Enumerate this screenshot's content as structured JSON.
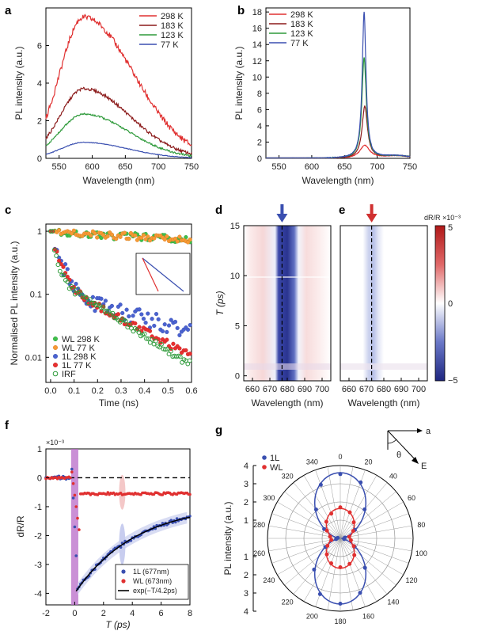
{
  "panels": {
    "a": {
      "letter": "a",
      "chart_data": {
        "type": "line",
        "xlabel": "Wavelength (nm)",
        "ylabel": "PL intensity (a.u.)",
        "xlim": [
          530,
          750
        ],
        "ylim": [
          0,
          8
        ],
        "xticks": [
          550,
          600,
          650,
          700,
          750
        ],
        "yticks": [
          0,
          2,
          4,
          6
        ],
        "legend": "top-right",
        "peak": 587,
        "series": [
          {
            "name": "298 K",
            "color": "#e03030",
            "amp": 7.5,
            "wl": 36,
            "wr": 75
          },
          {
            "name": "183 K",
            "color": "#8b1a1a",
            "amp": 3.7,
            "wl": 36,
            "wr": 70
          },
          {
            "name": "123 K",
            "color": "#2e9a3a",
            "amp": 2.35,
            "wl": 36,
            "wr": 68
          },
          {
            "name": "77 K",
            "color": "#3a4fb0",
            "amp": 0.85,
            "wl": 34,
            "wr": 66
          }
        ]
      }
    },
    "b": {
      "letter": "b",
      "chart_data": {
        "type": "line",
        "xlabel": "Wavelength (nm)",
        "ylabel": "PL intensity (a.u.)",
        "xlim": [
          530,
          750
        ],
        "ylim": [
          0,
          18.5
        ],
        "xticks": [
          550,
          600,
          650,
          700,
          750
        ],
        "yticks": [
          0,
          2,
          4,
          6,
          8,
          10,
          12,
          14,
          16,
          18
        ],
        "legend": "top-left",
        "series": [
          {
            "name": "298 K",
            "color": "#e03030",
            "peak": 681,
            "amp": 1.6,
            "w": 9
          },
          {
            "name": "183 K",
            "color": "#8b1a1a",
            "peak": 681,
            "amp": 6.4,
            "w": 5
          },
          {
            "name": "123 K",
            "color": "#2e9a3a",
            "peak": 680,
            "amp": 12.4,
            "w": 4
          },
          {
            "name": "77 K",
            "color": "#3a4fb0",
            "peak": 680,
            "amp": 18.0,
            "w": 3.5
          }
        ]
      }
    },
    "c": {
      "letter": "c",
      "chart_data": {
        "type": "scatter",
        "xlabel": "Time (ns)",
        "ylabel": "Normalised PL intensity (a.u.)",
        "xlim": [
          -0.02,
          0.6
        ],
        "ylim_log": [
          0.004,
          1.3
        ],
        "xticks": [
          "0.0",
          "0.1",
          "0.2",
          "0.3",
          "0.4",
          "0.5",
          "0.6"
        ],
        "yticks": [
          {
            "v": 1,
            "label": "1"
          },
          {
            "v": 0.1,
            "label": "0.1"
          },
          {
            "v": 0.01,
            "label": "0.01"
          }
        ],
        "legend": "bottom-left",
        "series": [
          {
            "name": "WL 298 K",
            "color": "#2e9a3a",
            "fill": "#3fbf4a",
            "tau1": 4.0,
            "a1": 0.6
          },
          {
            "name": "WL 77 K",
            "color": "#e07a20",
            "fill": "#f59a35",
            "tau1": 4.5,
            "a1": 0.6
          },
          {
            "name": "1L 298 K",
            "color": "#3a4fb0",
            "fill": "#4a62d0",
            "tau1": 0.05,
            "a1": 0.7
          },
          {
            "name": "1L 77 K",
            "color": "#c02020",
            "fill": "#e83030",
            "tau1": 0.03,
            "a1": 0.72
          },
          {
            "name": "IRF",
            "color": "#2e9a3a",
            "fill": "none",
            "tau1": 0.025,
            "a1": 0.82
          }
        ]
      }
    },
    "d": {
      "letter": "d",
      "chart_data": {
        "type": "heatmap",
        "xlabel": "Wavelength (nm)",
        "ylabel": "T (ps)",
        "xlim": [
          655,
          705
        ],
        "ylim": [
          -0.5,
          15
        ],
        "xticks": [
          660,
          670,
          680,
          690,
          700
        ],
        "yticks": [
          0,
          5,
          10,
          15
        ],
        "dashed_line_nm": 677,
        "arrow_color": "#3a4fb0"
      }
    },
    "e": {
      "letter": "e",
      "chart_data": {
        "type": "heatmap",
        "xlabel": "Wavelength (nm)",
        "xlim": [
          655,
          705
        ],
        "xticks": [
          660,
          670,
          680,
          690,
          700
        ],
        "dashed_line_nm": 673,
        "arrow_color": "#d03030"
      }
    },
    "colorbar": {
      "label": "dR/R ×10⁻³",
      "ticks": [
        "5",
        "0",
        "−5"
      ]
    },
    "f": {
      "letter": "f",
      "chart_data": {
        "type": "scatter",
        "xlabel": "T (ps)",
        "ylabel": "dR/R",
        "scale_label": "×10⁻³",
        "xlim": [
          -2,
          8
        ],
        "ylim": [
          -4.4,
          1
        ],
        "xticks": [
          -2,
          0,
          2,
          4,
          6,
          8
        ],
        "yticks": [
          1,
          0,
          -1,
          -2,
          -3,
          -4
        ],
        "legend": "bottom-right",
        "series": [
          {
            "name": "1L (677nm)",
            "color": "#3a4fb0"
          },
          {
            "name": "WL (673nm)",
            "color": "#e03030"
          },
          {
            "name": "exp(−T/4.2ps)",
            "color": "#000000"
          }
        ]
      }
    },
    "g": {
      "letter": "g",
      "chart_data": {
        "type": "polar",
        "ylabel": "PL intensity (a.u.)",
        "angle_ticks": [
          0,
          20,
          40,
          60,
          80,
          100,
          120,
          140,
          160,
          180,
          200,
          220,
          240,
          260,
          280,
          300,
          320,
          340
        ],
        "radial_ticks": [
          "4",
          "3",
          "2",
          "1",
          "1",
          "2",
          "3",
          "4"
        ],
        "legend": "top-left",
        "series": [
          {
            "name": "1L",
            "color": "#3a4fb0"
          },
          {
            "name": "WL",
            "color": "#e03030"
          }
        ],
        "inset": {
          "a_label": "a",
          "theta_label": "θ",
          "e_label": "E"
        }
      }
    }
  }
}
